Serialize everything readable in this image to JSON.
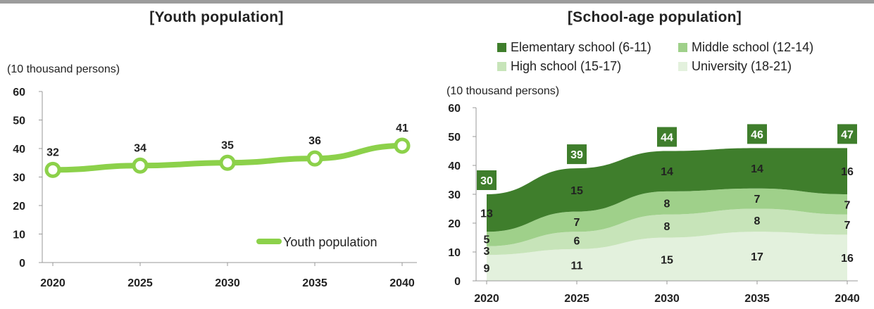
{
  "chart_data": [
    {
      "type": "line",
      "title": "[Youth population]",
      "unit": "(10 thousand persons)",
      "x": [
        "2020",
        "2025",
        "2030",
        "2035",
        "2040"
      ],
      "yticks": [
        "0",
        "10",
        "20",
        "30",
        "40",
        "50",
        "60"
      ],
      "ylim": [
        0,
        60
      ],
      "series": [
        {
          "name": "Youth population",
          "values": [
            32.5,
            34,
            35,
            36.5,
            41
          ],
          "labels": [
            "32",
            "34",
            "35",
            "36",
            "41"
          ]
        }
      ],
      "legend": "bottom-right",
      "colors": {
        "line": "#8cd14a"
      }
    },
    {
      "type": "area",
      "stacked": true,
      "title": "[School-age population]",
      "unit": "(10 thousand persons)",
      "x": [
        "2020",
        "2025",
        "2030",
        "2035",
        "2040"
      ],
      "yticks": [
        "0",
        "10",
        "20",
        "30",
        "40",
        "50",
        "60"
      ],
      "ylim": [
        0,
        60
      ],
      "series": [
        {
          "name": "University (18-21)",
          "values": [
            9,
            11,
            15,
            17,
            16
          ],
          "labels": [
            "9",
            "11",
            "15",
            "17",
            "16"
          ],
          "color": "#e3f1dd"
        },
        {
          "name": "High school (15-17)",
          "values": [
            3,
            6,
            8,
            8,
            7
          ],
          "labels": [
            "3",
            "6",
            "8",
            "8",
            "7"
          ],
          "color": "#c7e4b9"
        },
        {
          "name": "Middle school (12-14)",
          "values": [
            5,
            7,
            8,
            7,
            7
          ],
          "labels": [
            "5",
            "7",
            "8",
            "7",
            "7"
          ],
          "color": "#9fd08a"
        },
        {
          "name": "Elementary school (6-11)",
          "values": [
            13,
            15,
            14,
            14,
            16
          ],
          "labels": [
            "13",
            "15",
            "14",
            "14",
            "16"
          ],
          "color": "#3f7e2c"
        }
      ],
      "totals": [
        "30",
        "39",
        "44",
        "46",
        "47"
      ],
      "legend": "top",
      "colors": {
        "total_box": "#3f7e2c"
      }
    }
  ]
}
